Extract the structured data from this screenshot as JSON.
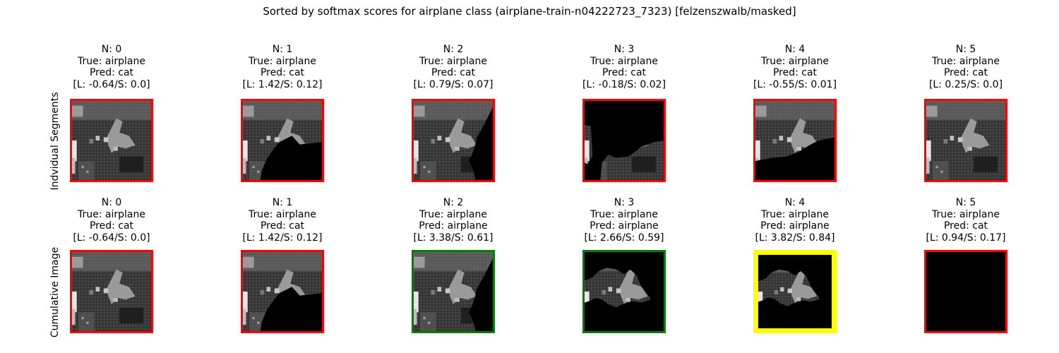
{
  "figure": {
    "title": "Sorted by softmax scores for airplane class (airplane-train-n04222723_7323) [felzenszwalb/masked]",
    "colors": {
      "incorrect": "#ff0000",
      "correct": "#008000",
      "best": "#ffff00"
    },
    "rows": [
      {
        "label": "Indvidual Segments",
        "cells": [
          {
            "n": "N: 0",
            "true_label": "True: airplane",
            "pred": "Pred: cat",
            "score": "[L: -0.64/S: 0.0]",
            "status": "incorrect"
          },
          {
            "n": "N: 1",
            "true_label": "True: airplane",
            "pred": "Pred: cat",
            "score": "[L: 1.42/S: 0.12]",
            "status": "incorrect"
          },
          {
            "n": "N: 2",
            "true_label": "True: airplane",
            "pred": "Pred: cat",
            "score": "[L: 0.79/S: 0.07]",
            "status": "incorrect"
          },
          {
            "n": "N: 3",
            "true_label": "True: airplane",
            "pred": "Pred: cat",
            "score": "[L: -0.18/S: 0.02]",
            "status": "incorrect"
          },
          {
            "n": "N: 4",
            "true_label": "True: airplane",
            "pred": "Pred: cat",
            "score": "[L: -0.55/S: 0.01]",
            "status": "incorrect"
          },
          {
            "n": "N: 5",
            "true_label": "True: airplane",
            "pred": "Pred: cat",
            "score": "[L: 0.25/S: 0.0]",
            "status": "incorrect"
          }
        ]
      },
      {
        "label": "Cumulative Image",
        "cells": [
          {
            "n": "N: 0",
            "true_label": "True: airplane",
            "pred": "Pred: cat",
            "score": "[L: -0.64/S: 0.0]",
            "status": "incorrect"
          },
          {
            "n": "N: 1",
            "true_label": "True: airplane",
            "pred": "Pred: cat",
            "score": "[L: 1.42/S: 0.12]",
            "status": "incorrect"
          },
          {
            "n": "N: 2",
            "true_label": "True: airplane",
            "pred": "Pred: airplane",
            "score": "[L: 3.38/S: 0.61]",
            "status": "correct"
          },
          {
            "n": "N: 3",
            "true_label": "True: airplane",
            "pred": "Pred: airplane",
            "score": "[L: 2.66/S: 0.59]",
            "status": "correct"
          },
          {
            "n": "N: 4",
            "true_label": "True: airplane",
            "pred": "Pred: airplane",
            "score": "[L: 3.82/S: 0.84]",
            "status": "best"
          },
          {
            "n": "N: 5",
            "true_label": "True: airplane",
            "pred": "Pred: cat",
            "score": "[L: 0.94/S: 0.17]",
            "status": "incorrect"
          }
        ]
      }
    ]
  }
}
